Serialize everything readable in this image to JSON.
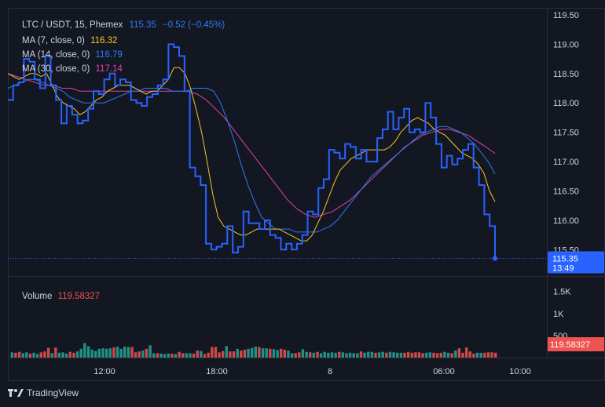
{
  "header": {
    "symbol": "LTC / USDT, 15, Phemex",
    "last": "115.35",
    "change": "−0.52 (−0.45%)",
    "ma7_label": "MA (7, close, 0)",
    "ma7_value": "116.32",
    "ma14_label": "MA (14, close, 0)",
    "ma14_value": "116.79",
    "ma30_label": "MA (30, close, 0)",
    "ma30_value": "117.14"
  },
  "volume_panel": {
    "label": "Volume",
    "value": "119.58327",
    "badge": "119.58327"
  },
  "price_badge": {
    "price": "115.35",
    "countdown": "13:49"
  },
  "footer": {
    "brand": "TradingView"
  },
  "colors": {
    "background": "#131722",
    "price_line": "#2962ff",
    "ma7": "#f7c52b",
    "ma14": "#2e7bf6",
    "ma30": "#e040b0",
    "vol_up": "#26a69a",
    "vol_down": "#ef5350"
  },
  "chart_data": [
    {
      "type": "line",
      "title": "LTC / USDT, 15, Phemex",
      "y_ticks": [
        "115.50",
        "116.00",
        "116.50",
        "117.00",
        "117.50",
        "118.00",
        "118.50",
        "119.00",
        "119.50"
      ],
      "x_ticks": [
        "12:00",
        "18:00",
        "8",
        "06:00",
        "10:00"
      ],
      "ylim": [
        115.05,
        119.62
      ],
      "series": [
        {
          "name": "Price",
          "step": true,
          "values": [
            118.05,
            118.3,
            118.35,
            118.75,
            118.7,
            118.4,
            118.25,
            118.8,
            118.3,
            118.05,
            117.65,
            117.95,
            117.8,
            117.65,
            117.7,
            117.9,
            118.2,
            118.15,
            118.4,
            118.5,
            118.3,
            118.4,
            118.35,
            118.05,
            118.0,
            117.95,
            118.1,
            118.15,
            118.3,
            118.4,
            119.0,
            118.95,
            118.8,
            118.2,
            116.9,
            116.75,
            116.6,
            115.6,
            115.5,
            115.55,
            115.6,
            115.9,
            115.45,
            115.55,
            116.15,
            115.95,
            115.95,
            115.85,
            116.0,
            115.75,
            115.7,
            115.5,
            115.6,
            115.5,
            115.6,
            115.75,
            116.15,
            116.1,
            116.55,
            116.7,
            117.2,
            117.15,
            117.05,
            117.3,
            117.25,
            117.05,
            117.2,
            117.0,
            117.0,
            117.4,
            117.55,
            117.85,
            117.55,
            117.75,
            117.9,
            117.5,
            117.55,
            117.5,
            118.0,
            117.75,
            117.3,
            116.9,
            117.1,
            116.95,
            117.05,
            117.2,
            117.3,
            116.9,
            116.6,
            116.1,
            115.9,
            115.35
          ]
        },
        {
          "name": "MA (7, close, 0)",
          "values": [
            118.5,
            118.45,
            118.4,
            118.45,
            118.5,
            118.5,
            118.45,
            118.5,
            118.3,
            118.1,
            118.0,
            117.95,
            117.9,
            117.8,
            117.85,
            117.95,
            118.05,
            118.1,
            118.2,
            118.25,
            118.3,
            118.3,
            118.3,
            118.25,
            118.2,
            118.15,
            118.2,
            118.2,
            118.3,
            118.4,
            118.6,
            118.6,
            118.5,
            118.25,
            117.9,
            117.5,
            117.0,
            116.45,
            116.05,
            115.9,
            115.85,
            115.8,
            115.75,
            115.75,
            115.8,
            115.85,
            115.85,
            115.85,
            115.85,
            115.85,
            115.8,
            115.75,
            115.7,
            115.65,
            115.65,
            115.75,
            115.95,
            116.15,
            116.4,
            116.65,
            116.85,
            116.95,
            117.05,
            117.1,
            117.15,
            117.2,
            117.2,
            117.2,
            117.2,
            117.25,
            117.35,
            117.5,
            117.6,
            117.7,
            117.75,
            117.7,
            117.65,
            117.55,
            117.5,
            117.45,
            117.35,
            117.25,
            117.15,
            117.1,
            117.05,
            116.95,
            116.8,
            116.5,
            116.32
          ]
        },
        {
          "name": "MA (14, close, 0)",
          "values": [
            118.25,
            118.3,
            118.35,
            118.4,
            118.4,
            118.35,
            118.3,
            118.25,
            118.2,
            118.1,
            118.05,
            118.0,
            118.0,
            118.0,
            118.0,
            118.05,
            118.1,
            118.15,
            118.2,
            118.2,
            118.25,
            118.25,
            118.25,
            118.25,
            118.2,
            118.2,
            118.2,
            118.25,
            118.25,
            118.25,
            118.2,
            118.0,
            117.7,
            117.35,
            116.95,
            116.6,
            116.3,
            116.05,
            115.95,
            115.85,
            115.85,
            115.85,
            115.8,
            115.8,
            115.8,
            115.8,
            115.85,
            115.9,
            116.0,
            116.15,
            116.3,
            116.45,
            116.6,
            116.75,
            116.85,
            116.95,
            117.05,
            117.15,
            117.25,
            117.35,
            117.45,
            117.5,
            117.55,
            117.6,
            117.6,
            117.55,
            117.5,
            117.4,
            117.3,
            117.15,
            117.0,
            116.79
          ]
        },
        {
          "name": "MA (30, close, 0)",
          "values": [
            118.5,
            118.45,
            118.4,
            118.35,
            118.3,
            118.3,
            118.25,
            118.25,
            118.2,
            118.2,
            118.2,
            118.2,
            118.2,
            118.2,
            118.2,
            118.2,
            118.2,
            118.2,
            118.2,
            118.2,
            118.2,
            118.15,
            118.05,
            117.9,
            117.75,
            117.55,
            117.35,
            117.15,
            116.95,
            116.75,
            116.55,
            116.35,
            116.2,
            116.1,
            116.05,
            116.1,
            116.15,
            116.25,
            116.35,
            116.5,
            116.65,
            116.8,
            116.95,
            117.1,
            117.25,
            117.35,
            117.45,
            117.5,
            117.55,
            117.55,
            117.5,
            117.45,
            117.35,
            117.25,
            117.14
          ]
        }
      ]
    },
    {
      "type": "bar",
      "title": "Volume",
      "y_ticks": [
        "500",
        "1K",
        "1.5K"
      ],
      "ylim": [
        0,
        1620
      ],
      "colors": [
        "g",
        "r",
        "r",
        "g",
        "g",
        "r",
        "g",
        "g",
        "r",
        "r",
        "r",
        "g",
        "r",
        "g",
        "g",
        "g",
        "r",
        "r",
        "g",
        "g",
        "g",
        "g",
        "g",
        "g",
        "g",
        "g",
        "g",
        "g",
        "r",
        "g",
        "g",
        "g",
        "g",
        "r",
        "r",
        "r",
        "g",
        "r",
        "g",
        "g",
        "r",
        "g",
        "g",
        "g",
        "r",
        "g",
        "r",
        "r",
        "g",
        "g",
        "r",
        "r",
        "g",
        "r",
        "r",
        "r",
        "r",
        "r",
        "r",
        "g",
        "r",
        "r",
        "g",
        "r",
        "r",
        "g",
        "g",
        "g",
        "r",
        "g",
        "g",
        "r",
        "g",
        "g",
        "r",
        "r",
        "g",
        "g",
        "r",
        "r",
        "g",
        "g",
        "r",
        "g",
        "r",
        "g",
        "g",
        "g",
        "g",
        "g",
        "r",
        "g",
        "g",
        "g",
        "g",
        "g",
        "r",
        "g",
        "g",
        "g",
        "r",
        "g",
        "g",
        "r",
        "g",
        "g",
        "g",
        "g",
        "r",
        "r",
        "r",
        "r",
        "r",
        "r",
        "g",
        "g",
        "r",
        "r",
        "r",
        "g",
        "g",
        "r",
        "g",
        "r",
        "r",
        "r",
        "r",
        "r",
        "g",
        "g",
        "r",
        "r",
        "r",
        "r"
      ],
      "values": [
        120,
        110,
        130,
        100,
        120,
        90,
        110,
        80,
        120,
        140,
        220,
        100,
        230,
        110,
        120,
        90,
        130,
        110,
        140,
        200,
        330,
        260,
        180,
        150,
        200,
        210,
        200,
        210,
        230,
        250,
        200,
        250,
        240,
        240,
        120,
        140,
        160,
        200,
        280,
        100,
        100,
        90,
        80,
        90,
        90,
        80,
        130,
        100,
        100,
        100,
        90,
        160,
        150,
        80,
        110,
        240,
        240,
        120,
        150,
        260,
        140,
        140,
        200,
        160,
        180,
        200,
        220,
        250,
        240,
        210,
        210,
        200,
        190,
        170,
        200,
        180,
        160,
        100,
        100,
        120,
        190,
        130,
        120,
        110,
        130,
        100,
        130,
        110,
        120,
        110,
        130,
        120,
        100,
        110,
        100,
        100,
        140,
        110,
        130,
        130,
        110,
        120,
        130,
        110,
        130,
        120,
        110,
        110,
        110,
        130,
        110,
        120,
        120,
        100,
        110,
        120,
        110,
        100,
        110,
        130,
        110,
        100,
        160,
        210,
        110,
        230,
        140,
        90,
        110,
        110,
        110,
        120,
        120,
        110
      ]
    }
  ]
}
